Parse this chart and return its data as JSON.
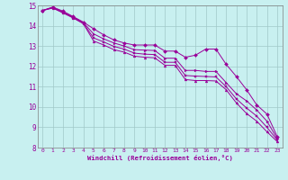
{
  "xlabel": "Windchill (Refroidissement éolien,°C)",
  "bg_color": "#c8f0f0",
  "grid_color": "#a0c8c8",
  "line_color": "#990099",
  "xlim": [
    -0.5,
    23.5
  ],
  "ylim": [
    8,
    15
  ],
  "xticks": [
    0,
    1,
    2,
    3,
    4,
    5,
    6,
    7,
    8,
    9,
    10,
    11,
    12,
    13,
    14,
    15,
    16,
    17,
    18,
    19,
    20,
    21,
    22,
    23
  ],
  "yticks": [
    8,
    9,
    10,
    11,
    12,
    13,
    14,
    15
  ],
  "series": [
    [
      14.75,
      14.92,
      14.72,
      14.45,
      14.18,
      13.85,
      13.55,
      13.3,
      13.15,
      13.05,
      13.05,
      13.05,
      12.75,
      12.75,
      12.45,
      12.55,
      12.85,
      12.85,
      12.1,
      11.5,
      10.85,
      10.1,
      9.65,
      8.55
    ],
    [
      14.75,
      14.9,
      14.68,
      14.43,
      14.15,
      13.6,
      13.35,
      13.15,
      13.0,
      12.82,
      12.8,
      12.78,
      12.4,
      12.4,
      11.8,
      11.8,
      11.75,
      11.75,
      11.2,
      10.65,
      10.3,
      9.85,
      9.3,
      8.45
    ],
    [
      14.75,
      14.88,
      14.65,
      14.4,
      14.12,
      13.4,
      13.2,
      12.98,
      12.85,
      12.65,
      12.6,
      12.58,
      12.2,
      12.2,
      11.55,
      11.52,
      11.5,
      11.48,
      11.0,
      10.4,
      9.95,
      9.55,
      9.0,
      8.38
    ],
    [
      14.75,
      14.87,
      14.63,
      14.38,
      14.1,
      13.25,
      13.05,
      12.82,
      12.7,
      12.5,
      12.45,
      12.42,
      12.05,
      12.05,
      11.35,
      11.3,
      11.3,
      11.28,
      10.85,
      10.2,
      9.68,
      9.3,
      8.78,
      8.3
    ]
  ]
}
